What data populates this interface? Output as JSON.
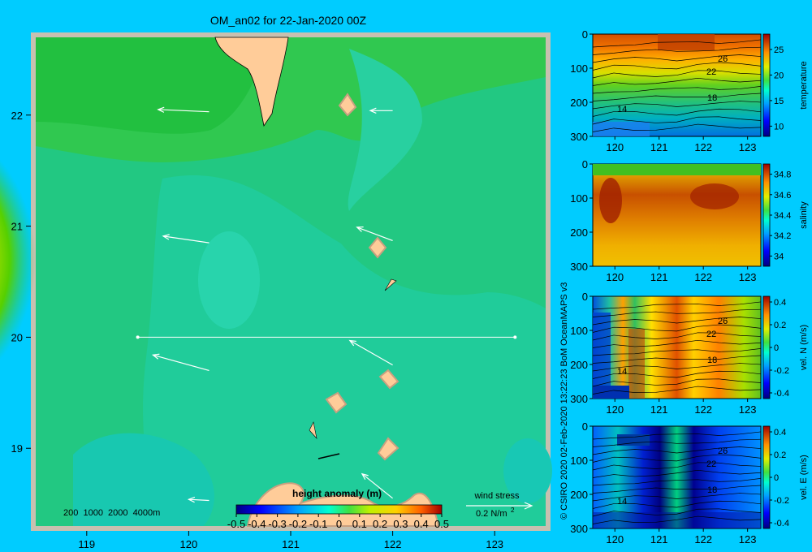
{
  "page": {
    "background": "#00ccff"
  },
  "main_map": {
    "title": "OM_an02 for 22-Jan-2020 00Z",
    "x_ticks": [
      "119",
      "120",
      "121",
      "122",
      "123"
    ],
    "y_ticks": [
      "22",
      "21",
      "20",
      "19"
    ],
    "depth_legend": "200  1000  2000  4000m",
    "colorbar_title": "height anomaly  (m)",
    "colorbar_ticks": [
      "-0.5",
      "-0.4",
      "-0.3",
      "-0.2",
      "-0.1",
      "0",
      "0.1",
      "0.2",
      "0.3",
      "0.4",
      "0.5"
    ],
    "wind_label": "wind stress",
    "wind_scale": "0.2 N/m",
    "wind_scale_sup": "2"
  },
  "credit": "© CSIRO 2020   02-Feb-2020 13:22:23 BoM OceanMAPS v3",
  "sections": [
    {
      "id": "temperature",
      "label": "temperature",
      "y_ticks": [
        "0",
        "100",
        "200",
        "300"
      ],
      "x_ticks": [
        "120",
        "121",
        "122",
        "123"
      ],
      "cb_ticks": [
        "25",
        "20",
        "15",
        "10"
      ],
      "contour_labels": [
        "26",
        "22",
        "18",
        "14"
      ]
    },
    {
      "id": "salinity",
      "label": "salinity",
      "y_ticks": [
        "0",
        "100",
        "200",
        "300"
      ],
      "x_ticks": [
        "120",
        "121",
        "122",
        "123"
      ],
      "cb_ticks": [
        "34.8",
        "34.6",
        "34.4",
        "34.2",
        "34"
      ],
      "contour_labels": []
    },
    {
      "id": "vel-n",
      "label": "vel. N  (m/s)",
      "y_ticks": [
        "0",
        "100",
        "200",
        "300"
      ],
      "x_ticks": [
        "120",
        "121",
        "122",
        "123"
      ],
      "cb_ticks": [
        "0.4",
        "0.2",
        "0",
        "-0.2",
        "-0.4"
      ],
      "contour_labels": [
        "26",
        "22",
        "18",
        "14"
      ]
    },
    {
      "id": "vel-e",
      "label": "vel. E  (m/s)",
      "y_ticks": [
        "0",
        "100",
        "200",
        "300"
      ],
      "x_ticks": [
        "120",
        "121",
        "122",
        "123"
      ],
      "cb_ticks": [
        "0.4",
        "0.2",
        "0",
        "-0.2",
        "-0.4"
      ],
      "contour_labels": [
        "26",
        "22",
        "18",
        "14"
      ]
    }
  ],
  "chart_data": [
    {
      "type": "heatmap",
      "title": "OM_an02 for 22-Jan-2020 00Z",
      "variable": "height anomaly (m)",
      "xlim": [
        118.5,
        123.5
      ],
      "ylim": [
        18.3,
        22.7
      ],
      "x_ticks": [
        119,
        120,
        121,
        122,
        123
      ],
      "y_ticks": [
        19,
        20,
        21,
        22
      ],
      "colorbar_range": [
        -0.5,
        0.5
      ],
      "section_line": {
        "lat": 20.0,
        "lon_start": 119.5,
        "lon_end": 123.2
      },
      "wind_stress_vectors": [
        {
          "lon": 120.2,
          "lat": 22.03,
          "dlon": -0.5,
          "dlat": 0.02
        },
        {
          "lon": 122.0,
          "lat": 22.04,
          "dlon": -0.22,
          "dlat": 0.0
        },
        {
          "lon": 120.2,
          "lat": 20.85,
          "dlon": -0.45,
          "dlat": 0.06
        },
        {
          "lon": 122.0,
          "lat": 20.87,
          "dlon": -0.35,
          "dlat": 0.12
        },
        {
          "lon": 120.2,
          "lat": 19.7,
          "dlon": -0.55,
          "dlat": 0.14
        },
        {
          "lon": 122.0,
          "lat": 19.75,
          "dlon": -0.42,
          "dlat": 0.22
        },
        {
          "lon": 120.2,
          "lat": 18.53,
          "dlon": -0.2,
          "dlat": 0.01
        },
        {
          "lon": 122.0,
          "lat": 18.55,
          "dlon": -0.3,
          "dlat": 0.22
        }
      ],
      "colors": {
        "background_field": "#22c882",
        "positive_anomaly": "#ff9900",
        "land": "#ffcc99",
        "border": "#c8c0b0"
      }
    },
    {
      "type": "heatmap",
      "variable": "temperature",
      "xlim": [
        119.5,
        123.3
      ],
      "ylim": [
        300,
        0
      ],
      "x_ticks": [
        120,
        121,
        122,
        123
      ],
      "y_ticks": [
        0,
        100,
        200,
        300
      ],
      "colorbar_range": [
        8,
        28
      ],
      "colorbar_ticks": [
        10,
        15,
        20,
        25
      ],
      "contour_labels": [
        26,
        22,
        18,
        14
      ]
    },
    {
      "type": "heatmap",
      "variable": "salinity",
      "xlim": [
        119.5,
        123.3
      ],
      "ylim": [
        300,
        0
      ],
      "x_ticks": [
        120,
        121,
        122,
        123
      ],
      "y_ticks": [
        0,
        100,
        200,
        300
      ],
      "colorbar_range": [
        33.9,
        34.9
      ],
      "colorbar_ticks": [
        34,
        34.2,
        34.4,
        34.6,
        34.8
      ]
    },
    {
      "type": "heatmap",
      "variable": "vel. N (m/s)",
      "xlim": [
        119.5,
        123.3
      ],
      "ylim": [
        300,
        0
      ],
      "x_ticks": [
        120,
        121,
        122,
        123
      ],
      "y_ticks": [
        0,
        100,
        200,
        300
      ],
      "colorbar_range": [
        -0.45,
        0.45
      ],
      "colorbar_ticks": [
        -0.4,
        -0.2,
        0,
        0.2,
        0.4
      ]
    },
    {
      "type": "heatmap",
      "variable": "vel. E (m/s)",
      "xlim": [
        119.5,
        123.3
      ],
      "ylim": [
        300,
        0
      ],
      "x_ticks": [
        120,
        121,
        122,
        123
      ],
      "y_ticks": [
        0,
        100,
        200,
        300
      ],
      "colorbar_range": [
        -0.45,
        0.45
      ],
      "colorbar_ticks": [
        -0.4,
        -0.2,
        0,
        0.2,
        0.4
      ]
    }
  ]
}
